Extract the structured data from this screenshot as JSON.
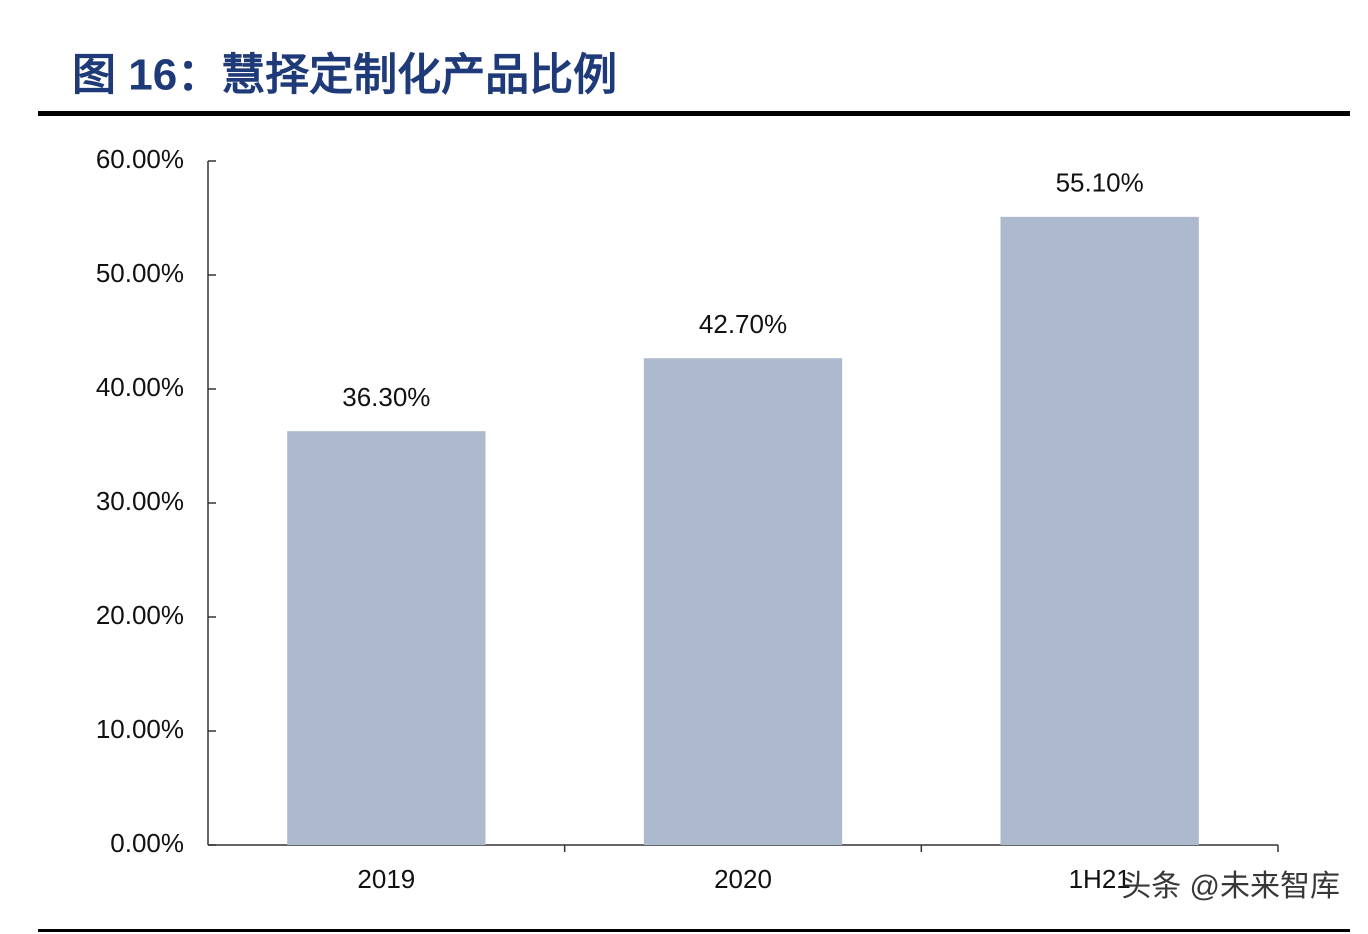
{
  "chart_data": {
    "type": "bar",
    "title": "图 16：慧择定制化产品比例",
    "categories": [
      "2019",
      "2020",
      "1H21"
    ],
    "values": [
      36.3,
      42.7,
      55.1
    ],
    "value_labels": [
      "36.30%",
      "42.70%",
      "55.10%"
    ],
    "color": "#adb9cc",
    "ylim": [
      0,
      60
    ],
    "yticks": [
      {
        "value": 0,
        "label": "0.00%"
      },
      {
        "value": 10,
        "label": "10.00%"
      },
      {
        "value": 20,
        "label": "20.00%"
      },
      {
        "value": 30,
        "label": "30.00%"
      },
      {
        "value": 40,
        "label": "40.00%"
      },
      {
        "value": 50,
        "label": "50.00%"
      },
      {
        "value": 60,
        "label": "60.00%"
      }
    ],
    "grid": false,
    "watermark": "头条 @未来智库"
  }
}
